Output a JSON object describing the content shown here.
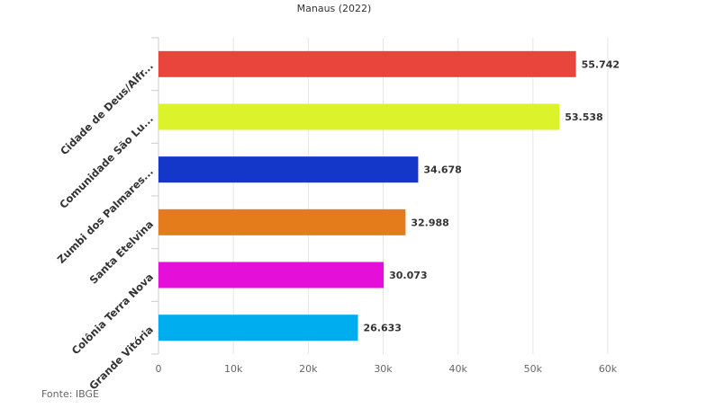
{
  "chart_data": {
    "type": "bar",
    "orientation": "horizontal",
    "title": "Manaus (2022)",
    "categories": [
      "Cidade de Deus/Alfr...",
      "Comunidade São Lu...",
      "Zumbi dos Palmares...",
      "Santa Etelvina",
      "Colônia Terra Nova",
      "Grande Vitória"
    ],
    "values": [
      55742,
      53538,
      34678,
      32988,
      30073,
      26633
    ],
    "value_labels": [
      "55.742",
      "53.538",
      "34.678",
      "32.988",
      "30.073",
      "26.633"
    ],
    "colors": [
      "#e9453c",
      "#dcf22a",
      "#1537c9",
      "#e57c1c",
      "#e40fd9",
      "#00aeef"
    ],
    "xlim": [
      0,
      60000
    ],
    "xticks": [
      0,
      10000,
      20000,
      30000,
      40000,
      50000,
      60000
    ],
    "xtick_labels": [
      "0",
      "10k",
      "20k",
      "30k",
      "40k",
      "50k",
      "60k"
    ],
    "grid": true,
    "xlabel": "",
    "ylabel": ""
  },
  "source": "Fonte: IBGE"
}
